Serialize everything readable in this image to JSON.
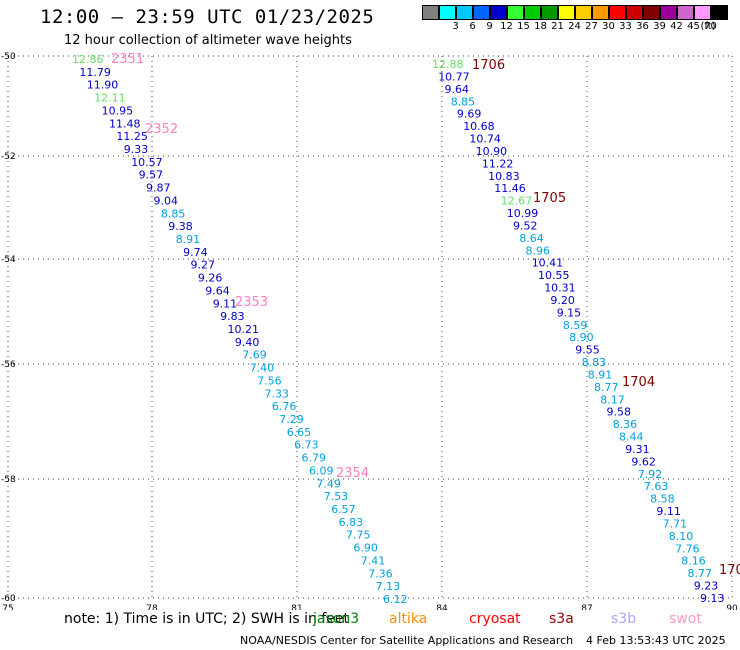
{
  "header": {
    "title": "12:00 — 23:59 UTC 01/23/2025",
    "subtitle": "12 hour collection of altimeter wave heights"
  },
  "legend": {
    "unit": "(ft)",
    "bins": [
      {
        "label": "",
        "color": "#808080"
      },
      {
        "label": "3",
        "color": "#00ffff"
      },
      {
        "label": "6",
        "color": "#00c8ff"
      },
      {
        "label": "9",
        "color": "#0064ff"
      },
      {
        "label": "12",
        "color": "#0000cc"
      },
      {
        "label": "15",
        "color": "#33ff33"
      },
      {
        "label": "18",
        "color": "#00cc00"
      },
      {
        "label": "21",
        "color": "#009900"
      },
      {
        "label": "24",
        "color": "#ffff00"
      },
      {
        "label": "27",
        "color": "#ffcc00"
      },
      {
        "label": "30",
        "color": "#ff9900"
      },
      {
        "label": "33",
        "color": "#ff0000"
      },
      {
        "label": "36",
        "color": "#cc0000"
      },
      {
        "label": "39",
        "color": "#800000"
      },
      {
        "label": "42",
        "color": "#990099"
      },
      {
        "label": "45",
        "color": "#cc66cc"
      },
      {
        "label": "70",
        "color": "#ff99ff"
      },
      {
        "label": "",
        "color": "#000000"
      }
    ]
  },
  "axes": {
    "x_ticks": [
      "75",
      "78",
      "81",
      "84",
      "87",
      "90"
    ],
    "y_ticks": [
      "-50",
      "-52",
      "-54",
      "-56",
      "-58",
      "-60"
    ]
  },
  "tracks": [
    {
      "id": "2351-2354",
      "pass_labels": [
        "2351",
        "2352",
        "2353",
        "2354"
      ],
      "pass_color": "#ff80c0",
      "points": [
        {
          "value": "12.86",
          "color": "#66dd66"
        },
        {
          "value": "11.79",
          "color": "#0000cc"
        },
        {
          "value": "11.90",
          "color": "#0000cc"
        },
        {
          "value": "12.11",
          "color": "#66dd66"
        },
        {
          "value": "10.95",
          "color": "#0000cc"
        },
        {
          "value": "11.48",
          "color": "#0000cc"
        },
        {
          "value": "11.25",
          "color": "#0000cc"
        },
        {
          "value": "9.33",
          "color": "#0000cc"
        },
        {
          "value": "10.57",
          "color": "#0000cc"
        },
        {
          "value": "9.57",
          "color": "#0000cc"
        },
        {
          "value": "9.87",
          "color": "#0000cc"
        },
        {
          "value": "9.04",
          "color": "#0000cc"
        },
        {
          "value": "8.85",
          "color": "#00a0e0"
        },
        {
          "value": "9.38",
          "color": "#0000cc"
        },
        {
          "value": "8.91",
          "color": "#00a0e0"
        },
        {
          "value": "9.74",
          "color": "#0000cc"
        },
        {
          "value": "9.27",
          "color": "#0000cc"
        },
        {
          "value": "9.26",
          "color": "#0000cc"
        },
        {
          "value": "9.64",
          "color": "#0000cc"
        },
        {
          "value": "9.11",
          "color": "#0000cc"
        },
        {
          "value": "9.83",
          "color": "#0000cc"
        },
        {
          "value": "10.21",
          "color": "#0000cc"
        },
        {
          "value": "9.40",
          "color": "#0000cc"
        },
        {
          "value": "7.69",
          "color": "#00a0e0"
        },
        {
          "value": "7.40",
          "color": "#00a0e0"
        },
        {
          "value": "7.56",
          "color": "#00a0e0"
        },
        {
          "value": "7.33",
          "color": "#00a0e0"
        },
        {
          "value": "6.76",
          "color": "#00a0e0"
        },
        {
          "value": "7.29",
          "color": "#00a0e0"
        },
        {
          "value": "6.65",
          "color": "#00a0e0"
        },
        {
          "value": "6.73",
          "color": "#00a0e0"
        },
        {
          "value": "6.79",
          "color": "#00a0e0"
        },
        {
          "value": "6.09",
          "color": "#00a0e0"
        },
        {
          "value": "7.49",
          "color": "#00a0e0"
        },
        {
          "value": "7.53",
          "color": "#00a0e0"
        },
        {
          "value": "6.57",
          "color": "#00a0e0"
        },
        {
          "value": "6.83",
          "color": "#00a0e0"
        },
        {
          "value": "7.75",
          "color": "#00a0e0"
        },
        {
          "value": "6.90",
          "color": "#00a0e0"
        },
        {
          "value": "7.41",
          "color": "#00a0e0"
        },
        {
          "value": "7.36",
          "color": "#00a0e0"
        },
        {
          "value": "7.13",
          "color": "#00a0e0"
        },
        {
          "value": "6.12",
          "color": "#00a0e0"
        }
      ]
    },
    {
      "id": "1706-1703",
      "pass_labels": [
        "1706",
        "1705",
        "1704",
        "170"
      ],
      "pass_color": "#800000",
      "points": [
        {
          "value": "12.88",
          "color": "#66dd66"
        },
        {
          "value": "10.77",
          "color": "#0000cc"
        },
        {
          "value": "9.64",
          "color": "#0000cc"
        },
        {
          "value": "8.85",
          "color": "#00a0e0"
        },
        {
          "value": "9.69",
          "color": "#0000cc"
        },
        {
          "value": "10.68",
          "color": "#0000cc"
        },
        {
          "value": "10.74",
          "color": "#0000cc"
        },
        {
          "value": "10.90",
          "color": "#0000cc"
        },
        {
          "value": "11.22",
          "color": "#0000cc"
        },
        {
          "value": "10.83",
          "color": "#0000cc"
        },
        {
          "value": "11.46",
          "color": "#0000cc"
        },
        {
          "value": "12.67",
          "color": "#66dd66"
        },
        {
          "value": "10.99",
          "color": "#0000cc"
        },
        {
          "value": "9.52",
          "color": "#0000cc"
        },
        {
          "value": "8.64",
          "color": "#00a0e0"
        },
        {
          "value": "8.96",
          "color": "#00a0e0"
        },
        {
          "value": "10.41",
          "color": "#0000cc"
        },
        {
          "value": "10.55",
          "color": "#0000cc"
        },
        {
          "value": "10.31",
          "color": "#0000cc"
        },
        {
          "value": "9.20",
          "color": "#0000cc"
        },
        {
          "value": "9.15",
          "color": "#0000cc"
        },
        {
          "value": "8.59",
          "color": "#00a0e0"
        },
        {
          "value": "8.90",
          "color": "#00a0e0"
        },
        {
          "value": "9.55",
          "color": "#0000cc"
        },
        {
          "value": "8.83",
          "color": "#00a0e0"
        },
        {
          "value": "8.91",
          "color": "#00a0e0"
        },
        {
          "value": "8.77",
          "color": "#00a0e0"
        },
        {
          "value": "8.17",
          "color": "#00a0e0"
        },
        {
          "value": "9.58",
          "color": "#0000cc"
        },
        {
          "value": "8.36",
          "color": "#00a0e0"
        },
        {
          "value": "8.44",
          "color": "#00a0e0"
        },
        {
          "value": "9.31",
          "color": "#0000cc"
        },
        {
          "value": "9.62",
          "color": "#0000cc"
        },
        {
          "value": "7.92",
          "color": "#00a0e0"
        },
        {
          "value": "7.63",
          "color": "#00a0e0"
        },
        {
          "value": "8.58",
          "color": "#00a0e0"
        },
        {
          "value": "9.11",
          "color": "#0000cc"
        },
        {
          "value": "7.71",
          "color": "#00a0e0"
        },
        {
          "value": "8.10",
          "color": "#00a0e0"
        },
        {
          "value": "7.76",
          "color": "#00a0e0"
        },
        {
          "value": "8.16",
          "color": "#00a0e0"
        },
        {
          "value": "8.77",
          "color": "#00a0e0"
        },
        {
          "value": "9.23",
          "color": "#0000cc"
        },
        {
          "value": "9.13",
          "color": "#0000cc"
        }
      ]
    }
  ],
  "footer": {
    "note": "note: 1) Time is in UTC; 2) SWH is in feet",
    "satellites": [
      {
        "name": "jason3",
        "color": "#008000"
      },
      {
        "name": "altika",
        "color": "#ff8c00"
      },
      {
        "name": "cryosat",
        "color": "#ff0000"
      },
      {
        "name": "s3a",
        "color": "#990000"
      },
      {
        "name": "s3b",
        "color": "#b0a0ff"
      },
      {
        "name": "swot",
        "color": "#ff99cc"
      }
    ],
    "credit": "NOAA/NESDIS Center for Satellite Applications and Research",
    "timestamp": "4 Feb 13:53:43 UTC 2025"
  }
}
